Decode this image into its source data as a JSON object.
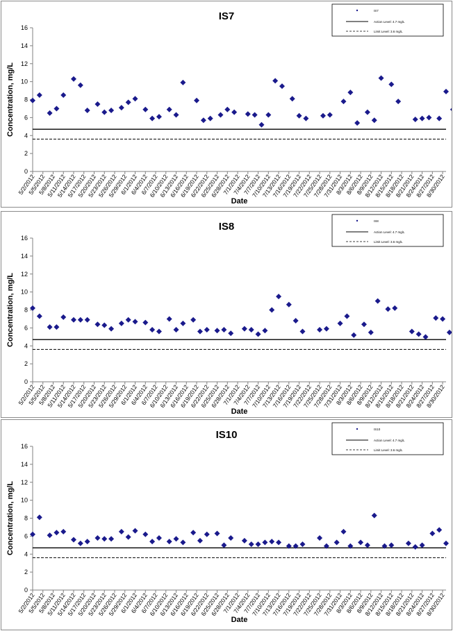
{
  "colors": {
    "marker": "#1a1a8c",
    "line": "#000000",
    "axis": "#808080"
  },
  "chart_data": [
    {
      "type": "scatter",
      "title": "IS7",
      "xlabel": "Date",
      "ylabel": "Concentration, mg/L",
      "ylim": [
        0,
        16
      ],
      "yticks": [
        0,
        2,
        4,
        6,
        8,
        10,
        12,
        14,
        16
      ],
      "tick_labels": [
        "5/2/2012",
        "5/5/2012",
        "5/8/2012",
        "5/11/2012",
        "5/14/2012",
        "5/17/2012",
        "5/20/2012",
        "5/23/2012",
        "5/26/2012",
        "5/29/2012",
        "6/1/2012",
        "6/4/2012",
        "6/7/2012",
        "6/10/2012",
        "6/13/2012",
        "6/16/2012",
        "6/19/2012",
        "6/22/2012",
        "6/25/2012",
        "6/28/2012",
        "7/1/2012",
        "7/4/2012",
        "7/7/2012",
        "7/10/2012",
        "7/13/2012",
        "7/16/2012",
        "7/19/2012",
        "7/22/2012",
        "7/25/2012",
        "7/28/2012",
        "7/31/2012",
        "8/3/2012",
        "8/6/2012",
        "8/9/2012",
        "8/12/2012",
        "8/15/2012",
        "8/18/2012",
        "8/21/2012",
        "8/24/2012",
        "8/27/2012",
        "8/30/2012"
      ],
      "x_start": "5/2/2012",
      "x_end": "8/31/2012",
      "legend": {
        "placement": "top-right",
        "series_name": "IS7",
        "action_label": "Action Level: 4.7 mg/L",
        "limit_label": "Limit Level: 3.6 mg/L"
      },
      "reference_lines": [
        {
          "label": "Action Level: 4.7 mg/L",
          "value": 4.7,
          "style": "solid"
        },
        {
          "label": "Limit Level: 3.6 mg/L",
          "value": 3.6,
          "style": "dashed"
        }
      ],
      "series": [
        {
          "name": "IS7",
          "points": [
            [
              "5/2/2012",
              7.9
            ],
            [
              "5/4/2012",
              8.5
            ],
            [
              "5/7/2012",
              6.5
            ],
            [
              "5/9/2012",
              7.0
            ],
            [
              "5/11/2012",
              8.5
            ],
            [
              "5/14/2012",
              10.3
            ],
            [
              "5/16/2012",
              9.6
            ],
            [
              "5/18/2012",
              6.8
            ],
            [
              "5/21/2012",
              7.5
            ],
            [
              "5/23/2012",
              6.6
            ],
            [
              "5/25/2012",
              6.8
            ],
            [
              "5/28/2012",
              7.1
            ],
            [
              "5/30/2012",
              7.7
            ],
            [
              "6/1/2012",
              8.1
            ],
            [
              "6/4/2012",
              6.9
            ],
            [
              "6/6/2012",
              5.9
            ],
            [
              "6/8/2012",
              6.1
            ],
            [
              "6/11/2012",
              6.9
            ],
            [
              "6/13/2012",
              6.3
            ],
            [
              "6/15/2012",
              9.9
            ],
            [
              "6/19/2012",
              7.9
            ],
            [
              "6/21/2012",
              5.7
            ],
            [
              "6/23/2012",
              5.9
            ],
            [
              "6/26/2012",
              6.3
            ],
            [
              "6/28/2012",
              6.9
            ],
            [
              "6/30/2012",
              6.6
            ],
            [
              "7/4/2012",
              6.4
            ],
            [
              "7/6/2012",
              6.3
            ],
            [
              "7/8/2012",
              5.2
            ],
            [
              "7/10/2012",
              6.3
            ],
            [
              "7/12/2012",
              10.1
            ],
            [
              "7/14/2012",
              9.5
            ],
            [
              "7/17/2012",
              8.1
            ],
            [
              "7/19/2012",
              6.2
            ],
            [
              "7/21/2012",
              5.9
            ],
            [
              "7/26/2012",
              6.2
            ],
            [
              "7/28/2012",
              6.3
            ],
            [
              "8/1/2012",
              7.8
            ],
            [
              "8/3/2012",
              8.8
            ],
            [
              "8/5/2012",
              5.4
            ],
            [
              "8/8/2012",
              6.6
            ],
            [
              "8/10/2012",
              5.7
            ],
            [
              "8/12/2012",
              10.4
            ],
            [
              "8/15/2012",
              9.7
            ],
            [
              "8/17/2012",
              7.8
            ],
            [
              "8/22/2012",
              5.8
            ],
            [
              "8/24/2012",
              5.9
            ],
            [
              "8/26/2012",
              6.0
            ],
            [
              "8/29/2012",
              5.9
            ],
            [
              "8/31/2012",
              8.9
            ],
            [
              "9/2/2012",
              6.9
            ]
          ]
        }
      ]
    },
    {
      "type": "scatter",
      "title": "IS8",
      "xlabel": "Date",
      "ylabel": "Concentration, mg/L",
      "ylim": [
        0,
        16
      ],
      "yticks": [
        0,
        2,
        4,
        6,
        8,
        10,
        12,
        14,
        16
      ],
      "tick_labels": [
        "5/2/2012",
        "5/5/2012",
        "5/8/2012",
        "5/11/2012",
        "5/14/2012",
        "5/17/2012",
        "5/20/2012",
        "5/23/2012",
        "5/26/2012",
        "5/29/2012",
        "6/1/2012",
        "6/4/2012",
        "6/7/2012",
        "6/10/2012",
        "6/13/2012",
        "6/16/2012",
        "6/19/2012",
        "6/22/2012",
        "6/25/2012",
        "6/28/2012",
        "7/1/2012",
        "7/4/2012",
        "7/7/2012",
        "7/10/2012",
        "7/13/2012",
        "7/16/2012",
        "7/19/2012",
        "7/22/2012",
        "7/25/2012",
        "7/28/2012",
        "7/31/2012",
        "8/3/2012",
        "8/6/2012",
        "8/9/2012",
        "8/12/2012",
        "8/15/2012",
        "8/18/2012",
        "8/21/2012",
        "8/24/2012",
        "8/27/2012",
        "8/30/2012"
      ],
      "x_start": "5/2/2012",
      "x_end": "8/31/2012",
      "legend": {
        "placement": "top-right",
        "series_name": "IS8",
        "action_label": "Action Level: 4.7 mg/L",
        "limit_label": "Limit Level: 3.6 mg/L"
      },
      "reference_lines": [
        {
          "label": "Action Level: 4.7 mg/L",
          "value": 4.7,
          "style": "solid"
        },
        {
          "label": "Limit Level: 3.6 mg/L",
          "value": 3.6,
          "style": "dashed"
        }
      ],
      "series": [
        {
          "name": "IS8",
          "points": [
            [
              "5/2/2012",
              8.2
            ],
            [
              "5/4/2012",
              7.3
            ],
            [
              "5/7/2012",
              6.1
            ],
            [
              "5/9/2012",
              6.1
            ],
            [
              "5/11/2012",
              7.2
            ],
            [
              "5/14/2012",
              6.9
            ],
            [
              "5/16/2012",
              6.9
            ],
            [
              "5/18/2012",
              6.9
            ],
            [
              "5/21/2012",
              6.4
            ],
            [
              "5/23/2012",
              6.3
            ],
            [
              "5/25/2012",
              5.9
            ],
            [
              "5/28/2012",
              6.5
            ],
            [
              "5/30/2012",
              6.9
            ],
            [
              "6/1/2012",
              6.7
            ],
            [
              "6/4/2012",
              6.6
            ],
            [
              "6/6/2012",
              5.8
            ],
            [
              "6/8/2012",
              5.6
            ],
            [
              "6/11/2012",
              7.0
            ],
            [
              "6/13/2012",
              5.8
            ],
            [
              "6/15/2012",
              6.5
            ],
            [
              "6/18/2012",
              6.9
            ],
            [
              "6/20/2012",
              5.6
            ],
            [
              "6/22/2012",
              5.8
            ],
            [
              "6/25/2012",
              5.7
            ],
            [
              "6/27/2012",
              5.8
            ],
            [
              "6/29/2012",
              5.4
            ],
            [
              "7/3/2012",
              5.9
            ],
            [
              "7/5/2012",
              5.8
            ],
            [
              "7/7/2012",
              5.3
            ],
            [
              "7/9/2012",
              5.7
            ],
            [
              "7/11/2012",
              8.0
            ],
            [
              "7/13/2012",
              9.5
            ],
            [
              "7/16/2012",
              8.6
            ],
            [
              "7/18/2012",
              6.8
            ],
            [
              "7/20/2012",
              5.6
            ],
            [
              "7/25/2012",
              5.8
            ],
            [
              "7/27/2012",
              5.9
            ],
            [
              "7/31/2012",
              6.5
            ],
            [
              "8/2/2012",
              7.3
            ],
            [
              "8/4/2012",
              5.2
            ],
            [
              "8/7/2012",
              6.4
            ],
            [
              "8/9/2012",
              5.5
            ],
            [
              "8/11/2012",
              9.0
            ],
            [
              "8/14/2012",
              8.1
            ],
            [
              "8/16/2012",
              8.2
            ],
            [
              "8/21/2012",
              5.6
            ],
            [
              "8/23/2012",
              5.3
            ],
            [
              "8/25/2012",
              5.0
            ],
            [
              "8/28/2012",
              7.1
            ],
            [
              "8/30/2012",
              7.0
            ],
            [
              "9/1/2012",
              5.5
            ]
          ]
        }
      ]
    },
    {
      "type": "scatter",
      "title": "IS10",
      "xlabel": "Date",
      "ylabel": "Concentration, mg/L",
      "ylim": [
        0,
        16
      ],
      "yticks": [
        0,
        2,
        4,
        6,
        8,
        10,
        12,
        14,
        16
      ],
      "tick_labels": [
        "5/2/2012",
        "5/5/2012",
        "5/8/2012",
        "5/11/2012",
        "5/14/2012",
        "5/17/2012",
        "5/20/2012",
        "5/23/2012",
        "5/26/2012",
        "5/29/2012",
        "6/1/2012",
        "6/4/2012",
        "6/7/2012",
        "6/10/2012",
        "6/13/2012",
        "6/16/2012",
        "6/19/2012",
        "6/22/2012",
        "6/25/2012",
        "6/28/2012",
        "7/1/2012",
        "7/4/2012",
        "7/7/2012",
        "7/10/2012",
        "7/13/2012",
        "7/16/2012",
        "7/19/2012",
        "7/22/2012",
        "7/25/2012",
        "7/28/2012",
        "7/31/2012",
        "8/3/2012",
        "8/6/2012",
        "8/9/2012",
        "8/12/2012",
        "8/15/2012",
        "8/18/2012",
        "8/21/2012",
        "8/24/2012",
        "8/27/2012",
        "8/30/2012"
      ],
      "x_start": "5/2/2012",
      "x_end": "8/31/2012",
      "legend": {
        "placement": "top-right",
        "series_name": "IS10",
        "action_label": "Action Level: 4.7 mg/L",
        "limit_label": "Limit Level: 3.6 mg/L"
      },
      "reference_lines": [
        {
          "label": "Action Level: 4.7 mg/L",
          "value": 4.7,
          "style": "solid"
        },
        {
          "label": "Limit Level: 3.6 mg/L",
          "value": 3.6,
          "style": "dashed"
        }
      ],
      "series": [
        {
          "name": "IS10",
          "points": [
            [
              "5/2/2012",
              6.2
            ],
            [
              "5/4/2012",
              8.1
            ],
            [
              "5/7/2012",
              6.1
            ],
            [
              "5/9/2012",
              6.4
            ],
            [
              "5/11/2012",
              6.5
            ],
            [
              "5/14/2012",
              5.6
            ],
            [
              "5/16/2012",
              5.2
            ],
            [
              "5/18/2012",
              5.4
            ],
            [
              "5/21/2012",
              5.8
            ],
            [
              "5/23/2012",
              5.7
            ],
            [
              "5/25/2012",
              5.7
            ],
            [
              "5/28/2012",
              6.5
            ],
            [
              "5/30/2012",
              5.9
            ],
            [
              "6/1/2012",
              6.6
            ],
            [
              "6/4/2012",
              6.2
            ],
            [
              "6/6/2012",
              5.4
            ],
            [
              "6/8/2012",
              5.8
            ],
            [
              "6/11/2012",
              5.4
            ],
            [
              "6/13/2012",
              5.7
            ],
            [
              "6/15/2012",
              5.3
            ],
            [
              "6/18/2012",
              6.4
            ],
            [
              "6/20/2012",
              5.5
            ],
            [
              "6/22/2012",
              6.2
            ],
            [
              "6/25/2012",
              6.3
            ],
            [
              "6/27/2012",
              5.0
            ],
            [
              "6/29/2012",
              5.8
            ],
            [
              "7/3/2012",
              5.5
            ],
            [
              "7/5/2012",
              5.1
            ],
            [
              "7/7/2012",
              5.1
            ],
            [
              "7/9/2012",
              5.3
            ],
            [
              "7/11/2012",
              5.4
            ],
            [
              "7/13/2012",
              5.3
            ],
            [
              "7/16/2012",
              4.9
            ],
            [
              "7/18/2012",
              4.9
            ],
            [
              "7/20/2012",
              5.1
            ],
            [
              "7/25/2012",
              5.8
            ],
            [
              "7/27/2012",
              4.9
            ],
            [
              "7/30/2012",
              5.3
            ],
            [
              "8/1/2012",
              6.5
            ],
            [
              "8/3/2012",
              4.9
            ],
            [
              "8/6/2012",
              5.3
            ],
            [
              "8/8/2012",
              5.0
            ],
            [
              "8/10/2012",
              8.3
            ],
            [
              "8/13/2012",
              4.9
            ],
            [
              "8/15/2012",
              5.0
            ],
            [
              "8/20/2012",
              5.2
            ],
            [
              "8/22/2012",
              4.8
            ],
            [
              "8/24/2012",
              5.0
            ],
            [
              "8/27/2012",
              6.3
            ],
            [
              "8/29/2012",
              6.7
            ],
            [
              "8/31/2012",
              5.2
            ]
          ]
        }
      ]
    }
  ]
}
